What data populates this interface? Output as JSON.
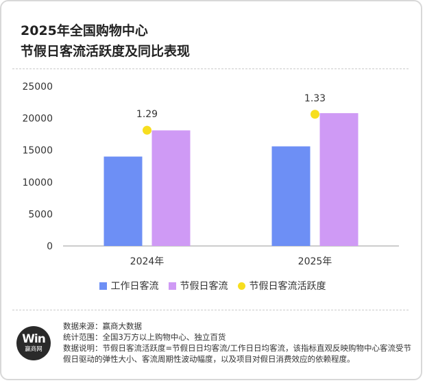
{
  "title": {
    "line1": "2025年全国购物中心",
    "line2": "节假日客流活跃度及同比表现"
  },
  "colors": {
    "workday": "#6d8ff5",
    "holiday": "#cf9af5",
    "activity": "#f7de1f"
  },
  "chart_data": {
    "type": "bar",
    "categories": [
      "2024年",
      "2025年"
    ],
    "series": [
      {
        "name": "工作日客流",
        "values": [
          14000,
          15600
        ]
      },
      {
        "name": "节假日客流",
        "values": [
          18100,
          20800
        ]
      }
    ],
    "activity": {
      "name": "节假日客流活跃度",
      "values": [
        1.29,
        1.33
      ],
      "labels": [
        "1.29",
        "1.33"
      ]
    },
    "ylim": [
      0,
      25000
    ],
    "yticks": [
      "0",
      "5000",
      "10000",
      "15000",
      "20000",
      "25000"
    ],
    "legend_position": "bottom"
  },
  "legend": {
    "workday": "工作日客流",
    "holiday": "节假日客流",
    "activity": "节假日客流活跃度"
  },
  "notes": {
    "source": "数据来源：赢商大数据",
    "scope": "统计范围：全国3万方以上购物中心、独立百货",
    "desc": "数据说明：节假日客流活跃度=节假日日均客流/工作日日均客流，该指标直观反映购物中心客流受节假日驱动的弹性大小、客流周期性波动幅度，以及项目对假日消费效应的依赖程度。"
  },
  "logo": {
    "mark": "Win",
    "name": "赢商网"
  }
}
